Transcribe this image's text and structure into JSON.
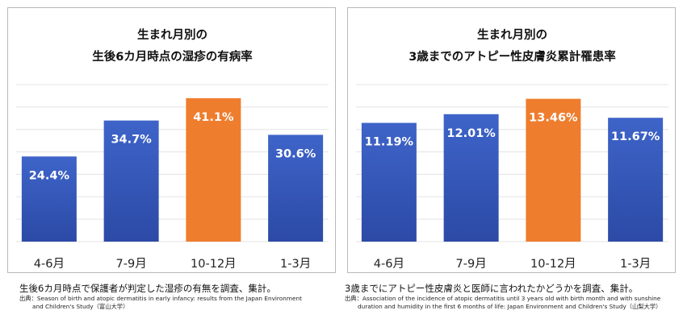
{
  "chart_data": [
    {
      "type": "bar",
      "title": [
        "生まれ月別の",
        "生後6カ月時点の湿疹の有病率"
      ],
      "categories": [
        "4-6月",
        "7-9月",
        "10-12月",
        "1-3月"
      ],
      "values": [
        24.4,
        34.7,
        41.1,
        30.6
      ],
      "labels": [
        "24.4%",
        "34.7%",
        "41.1%",
        "30.6%"
      ],
      "highlight_index": 2,
      "ylim": [
        0,
        45
      ],
      "grid": true,
      "colors": {
        "bar": "#3e64c9",
        "bar_dark": "#2c4aa6",
        "highlight": "#ef7d2e",
        "grid": "#e3e3e3",
        "label": "#ffffff"
      }
    },
    {
      "type": "bar",
      "title": [
        "生まれ月別の",
        "3歳までのアトピー性皮膚炎累計罹患率"
      ],
      "categories": [
        "4-6月",
        "7-9月",
        "10-12月",
        "1-3月"
      ],
      "values": [
        11.19,
        12.01,
        13.46,
        11.67
      ],
      "labels": [
        "11.19%",
        "12.01%",
        "13.46%",
        "11.67%"
      ],
      "highlight_index": 2,
      "ylim": [
        0,
        14.8
      ],
      "grid": true,
      "colors": {
        "bar": "#3e64c9",
        "bar_dark": "#2c4aa6",
        "highlight": "#ef7d2e",
        "grid": "#e3e3e3",
        "label": "#ffffff"
      }
    }
  ],
  "captions": {
    "left": {
      "main": "生後6カ月時点で保護者が判定した湿疹の有無を調査、集計。",
      "source_line1": "出典：Season of birth and atopic dermatitis in early infancy: results from the Japan Environment",
      "source_line2": "and Children's Study（富山大学）"
    },
    "right": {
      "main": "3歳までにアトピー性皮膚炎と医師に言われたかどうかを調査、集計。",
      "source_line1": "出典：Association of the incidence of atopic dermatitis until 3 years old with birth month and with sunshine",
      "source_line2": "duration and humidity in the first 6 months of life: Japan Environment and Children's Study（山梨大学）"
    }
  }
}
